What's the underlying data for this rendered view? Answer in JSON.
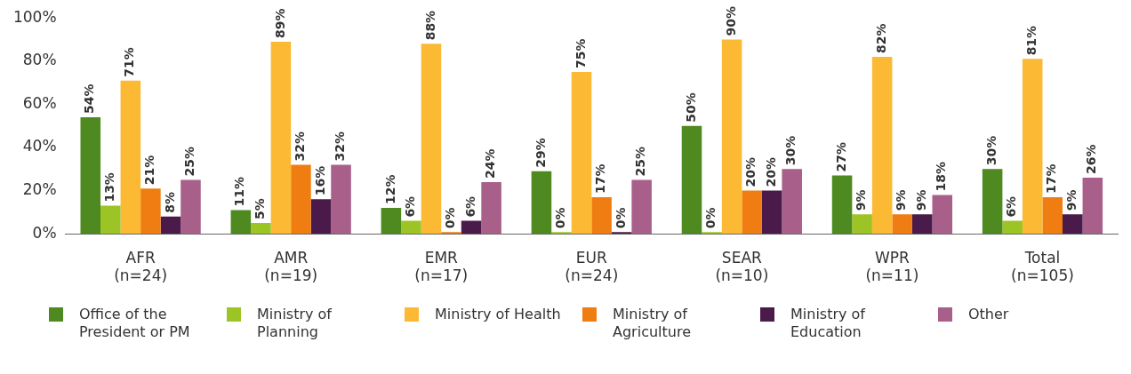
{
  "chart_data": {
    "type": "bar",
    "categories": [
      "AFR\n(n=24)",
      "AMR\n(n=19)",
      "EMR\n(n=17)",
      "EUR\n(n=24)",
      "SEAR\n(n=10)",
      "WPR\n(n=11)",
      "Total\n(n=105)"
    ],
    "ylim": [
      0,
      100
    ],
    "yticks": [
      {
        "value": 0,
        "label": "0%"
      },
      {
        "value": 20,
        "label": "20%"
      },
      {
        "value": 40,
        "label": "40%"
      },
      {
        "value": 60,
        "label": "60%"
      },
      {
        "value": 80,
        "label": "80%"
      },
      {
        "value": 100,
        "label": "100%"
      }
    ],
    "grid": false,
    "legend": "bottom",
    "series": [
      {
        "name": "Office of the President or PM",
        "color": "#4e8a1f",
        "values": [
          54,
          11,
          12,
          29,
          50,
          27,
          30
        ],
        "value_labels": [
          "54%",
          "11%",
          "12%",
          "29%",
          "50%",
          "27%",
          "30%"
        ]
      },
      {
        "name": "Ministry of Planning",
        "color": "#9cc425",
        "values": [
          13,
          5,
          6,
          0,
          0,
          9,
          6
        ],
        "value_labels": [
          "13%",
          "5%",
          "6%",
          "0%",
          "0%",
          "9%",
          "6%"
        ]
      },
      {
        "name": "Ministry of Health",
        "color": "#fbb934",
        "values": [
          71,
          89,
          88,
          75,
          90,
          82,
          81
        ],
        "value_labels": [
          "71%",
          "89%",
          "88%",
          "75%",
          "90%",
          "82%",
          "81%"
        ]
      },
      {
        "name": "Ministry of Agriculture",
        "color": "#ef7d11",
        "values": [
          21,
          32,
          0,
          17,
          20,
          9,
          17
        ],
        "value_labels": [
          "21%",
          "32%",
          "0%",
          "17%",
          "20%",
          "9%",
          "17%"
        ]
      },
      {
        "name": "Ministry of Education",
        "color": "#4a1a4a",
        "values": [
          8,
          16,
          6,
          0,
          20,
          9,
          9
        ],
        "value_labels": [
          "8%",
          "16%",
          "6%",
          "0%",
          "20%",
          "9%",
          "9%"
        ]
      },
      {
        "name": "Other",
        "color": "#a8608a",
        "values": [
          25,
          32,
          24,
          25,
          30,
          18,
          26
        ],
        "value_labels": [
          "25%",
          "32%",
          "24%",
          "25%",
          "30%",
          "18%",
          "26%"
        ]
      }
    ]
  }
}
